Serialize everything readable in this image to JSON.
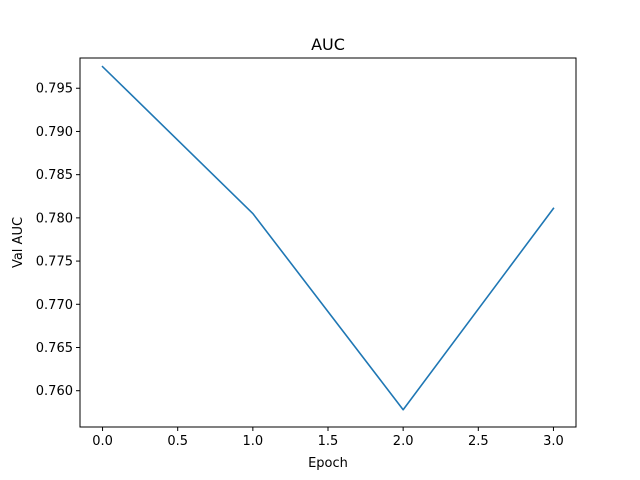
{
  "chart_data": {
    "type": "line",
    "title": "AUC",
    "xlabel": "Epoch",
    "ylabel": "Val AUC",
    "xlim": [
      -0.15,
      3.15
    ],
    "ylim": [
      0.7558,
      0.7985
    ],
    "xticks": [
      0.0,
      0.5,
      1.0,
      1.5,
      2.0,
      2.5,
      3.0
    ],
    "xtick_labels": [
      "0.0",
      "0.5",
      "1.0",
      "1.5",
      "2.0",
      "2.5",
      "3.0"
    ],
    "yticks": [
      0.76,
      0.765,
      0.77,
      0.775,
      0.78,
      0.785,
      0.79,
      0.795
    ],
    "ytick_labels": [
      "0.760",
      "0.765",
      "0.770",
      "0.775",
      "0.780",
      "0.785",
      "0.790",
      "0.795"
    ],
    "grid": false,
    "series": [
      {
        "x": [
          0,
          1,
          2,
          3
        ],
        "values": [
          0.7975,
          0.7805,
          0.7578,
          0.7811
        ],
        "color": "#1f77b4"
      }
    ]
  }
}
